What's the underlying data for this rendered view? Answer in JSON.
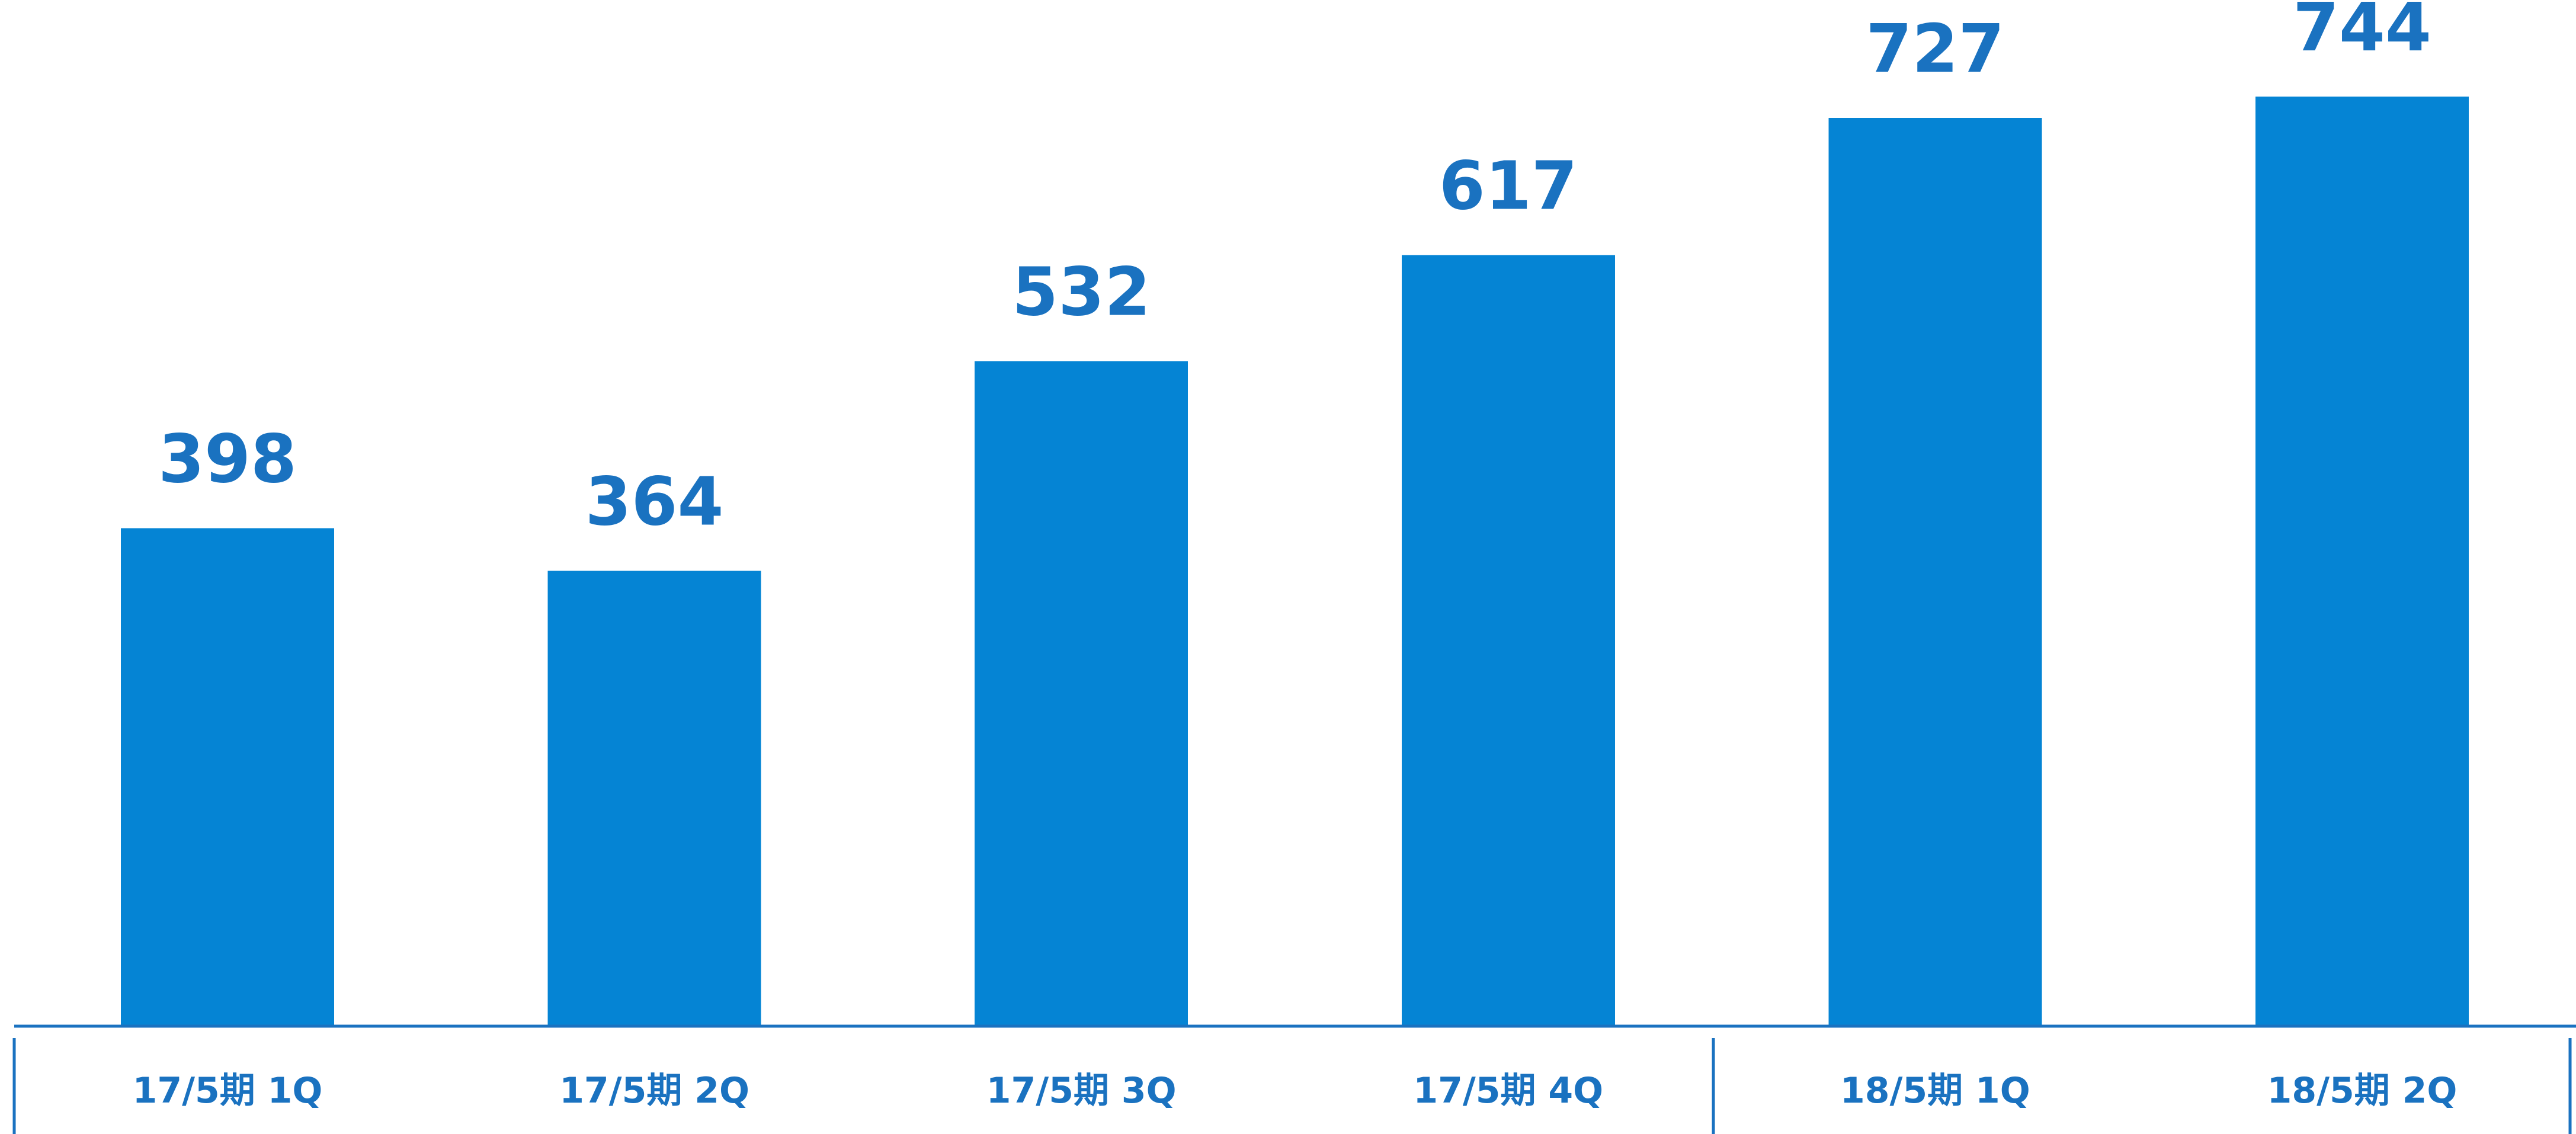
{
  "colors": {
    "bar": "#0584D4",
    "value_text": "#1A72C0",
    "axis": "#1A72C0",
    "category_text": "#1A72C0"
  },
  "chart_data": {
    "type": "bar",
    "title": "",
    "xlabel": "",
    "ylabel": "",
    "categories": [
      "17/5期 1Q",
      "17/5期 2Q",
      "17/5期 3Q",
      "17/5期 4Q",
      "18/5期 1Q",
      "18/5期 2Q"
    ],
    "values": [
      398,
      364,
      532,
      617,
      727,
      744
    ],
    "value_labels": [
      "398",
      "364",
      "532",
      "617",
      "727",
      "744"
    ],
    "ylim": [
      0,
      744
    ],
    "grid": false,
    "legend": "none",
    "fiscal_year_divider_after_index": 3
  }
}
